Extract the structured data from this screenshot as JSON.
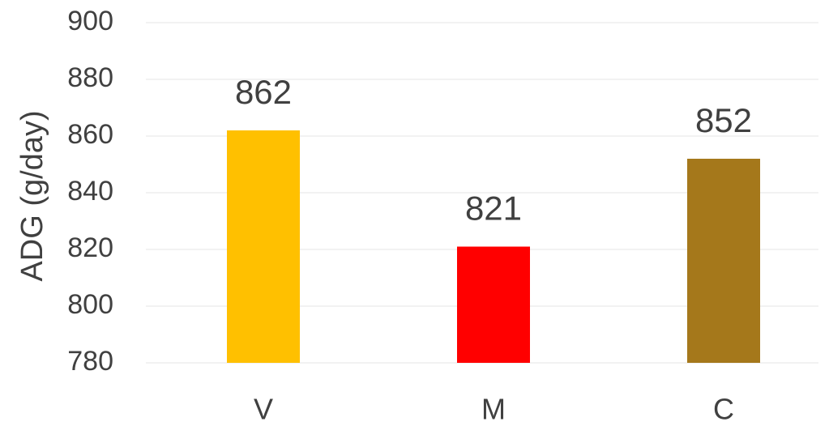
{
  "chart_data": {
    "type": "bar",
    "y_label": "ADG (g/day)",
    "categories": [
      "V",
      "M",
      "C"
    ],
    "values": [
      862,
      821,
      852
    ],
    "colors": [
      "#ffc000",
      "#ff0000",
      "#a5781b"
    ],
    "ylim": [
      780,
      900
    ],
    "yticks": [
      780,
      800,
      820,
      840,
      860,
      880,
      900
    ],
    "grid": true
  }
}
